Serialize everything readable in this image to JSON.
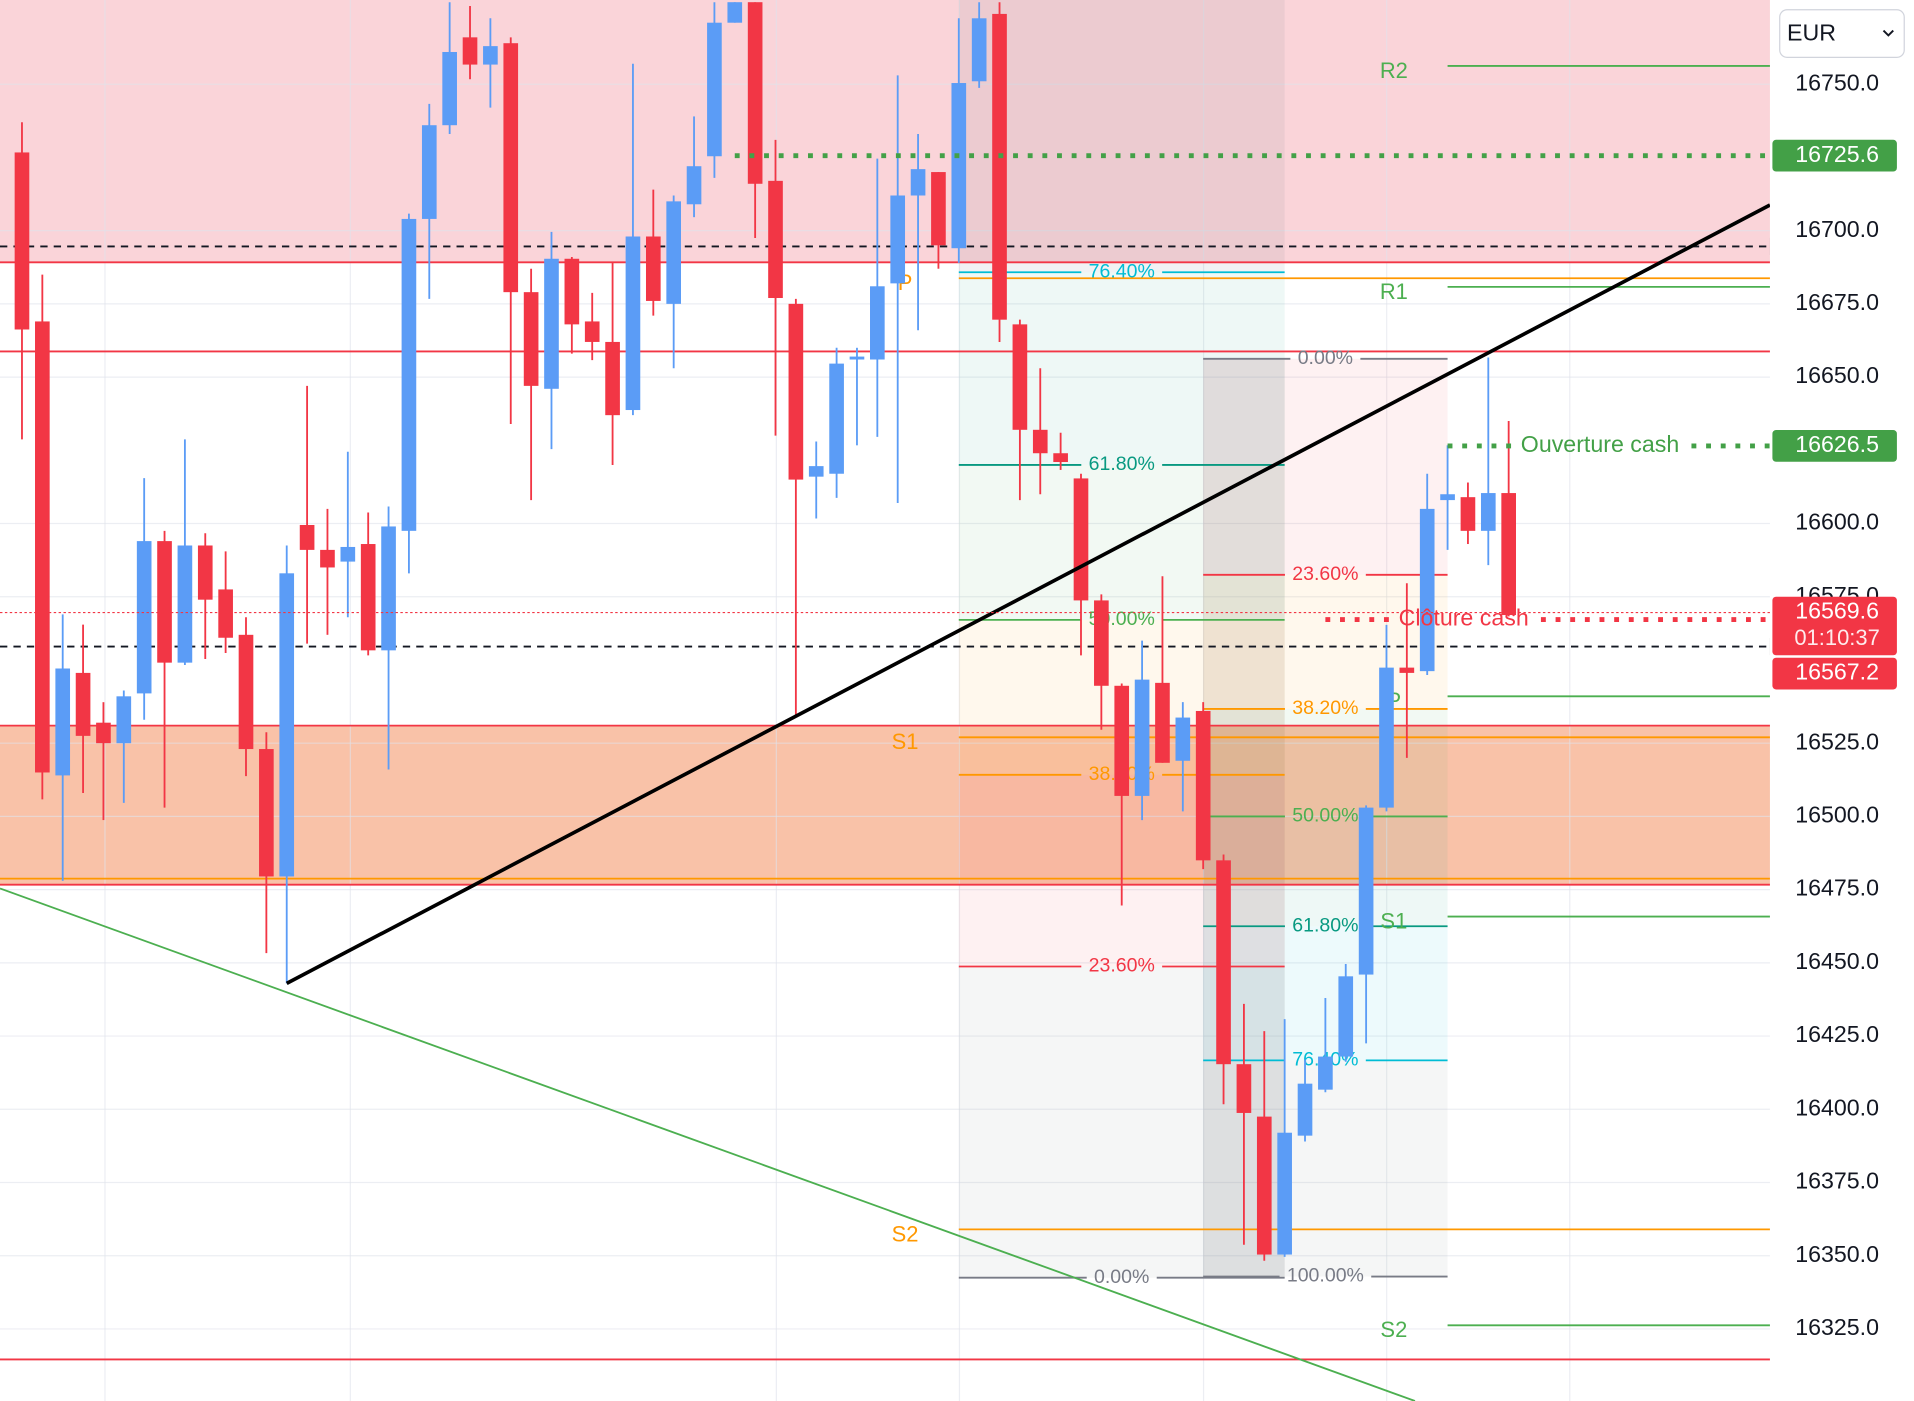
{
  "chart_data": {
    "type": "candlestick",
    "currency": "EUR",
    "up_color": "#5b9cf6",
    "down_color": "#f23645",
    "grid": true,
    "xlim": [
      -1.079,
      85.83
    ],
    "ylim": [
      16300.4,
      16778.75
    ],
    "yticks": [
      {
        "value": 16325,
        "label": "16325.0"
      },
      {
        "value": 16350,
        "label": "16350.0"
      },
      {
        "value": 16375,
        "label": "16375.0"
      },
      {
        "value": 16400,
        "label": "16400.0"
      },
      {
        "value": 16425,
        "label": "16425.0"
      },
      {
        "value": 16450,
        "label": "16450.0"
      },
      {
        "value": 16475,
        "label": "16475.0"
      },
      {
        "value": 16500,
        "label": "16500.0"
      },
      {
        "value": 16525,
        "label": "16525.0"
      },
      {
        "value": 16575,
        "label": "16575.0"
      },
      {
        "value": 16600,
        "label": "16600.0"
      },
      {
        "value": 16650,
        "label": "16650.0"
      },
      {
        "value": 16675,
        "label": "16675.0"
      },
      {
        "value": 16700,
        "label": "16700.0"
      },
      {
        "value": 16750,
        "label": "16750.0"
      }
    ],
    "open": [
      16726.7,
      16669,
      16514,
      16549,
      16532,
      16525,
      16542,
      16594,
      16552.5,
      16592.5,
      16577.5,
      16562,
      16523,
      16479.5,
      16599.5,
      16591,
      16587,
      16593,
      16556.7,
      16597.5,
      16704,
      16736,
      16766,
      16756.7,
      16764,
      16679,
      16646,
      16690.4,
      16669,
      16662,
      16638.75,
      16698,
      16675,
      16709,
      16725.4,
      16771,
      16778,
      16717,
      16675,
      16616,
      16617,
      16656,
      16656,
      16682,
      16712,
      16720,
      16694,
      16751,
      16774,
      16668,
      16632,
      16624,
      16615.4,
      16573.75,
      16544.6,
      16507,
      16545.6,
      16519,
      16536,
      16485,
      16415.4,
      16397.5,
      16350.4,
      16391,
      16406.7,
      16418,
      16446,
      16503,
      16550.8,
      16549.6,
      16608,
      16609,
      16597.5,
      16610.4
    ],
    "high": [
      16737,
      16685,
      16569,
      16565.5,
      16539,
      16543,
      16615.5,
      16597.5,
      16628.75,
      16596.7,
      16590.5,
      16568,
      16528.75,
      16592.5,
      16647,
      16605,
      16624.5,
      16603.75,
      16605.8,
      16705.8,
      16743.3,
      16778,
      16776.7,
      16772.5,
      16766,
      16687,
      16699.6,
      16691,
      16678.75,
      16689,
      16757,
      16714,
      16712,
      16739,
      16778,
      16778,
      16778,
      16731,
      16676.7,
      16628,
      16660,
      16660,
      16724.6,
      16753,
      16733,
      16720,
      16772.5,
      16778,
      16778,
      16669.6,
      16653,
      16631,
      16617,
      16575.8,
      16545.4,
      16560,
      16582,
      16539,
      16539,
      16487,
      16436,
      16426.7,
      16430.8,
      16417,
      16438,
      16449.6,
      16503.75,
      16565.4,
      16579.6,
      16617,
      16626.7,
      16614,
      16656.7,
      16635
    ],
    "low": [
      16628.75,
      16505.8,
      16478,
      16508,
      16498.75,
      16504.6,
      16533,
      16503,
      16551.7,
      16553.75,
      16555.8,
      16513.75,
      16453.3,
      16443,
      16559,
      16562,
      16568,
      16555,
      16516,
      16583,
      16676.7,
      16733,
      16751.7,
      16742,
      16634,
      16608,
      16625.4,
      16658,
      16655.8,
      16620,
      16637,
      16671,
      16653,
      16704.6,
      16718,
      16771,
      16697.5,
      16630,
      16533.75,
      16601.7,
      16608.75,
      16626.7,
      16629.6,
      16607,
      16666,
      16687,
      16689,
      16748.75,
      16662,
      16608,
      16610,
      16618.3,
      16555,
      16529.6,
      16469.6,
      16498.75,
      16518.3,
      16501.7,
      16482,
      16401.7,
      16353.75,
      16348.3,
      16349.6,
      16389,
      16405.8,
      16416.25,
      16422.5,
      16501.7,
      16520,
      16548.3,
      16591,
      16593,
      16585.8,
      16568.3
    ],
    "close": [
      16666.25,
      16515,
      16550.5,
      16527.5,
      16525,
      16541,
      16594,
      16552.5,
      16592.5,
      16574,
      16561,
      16523,
      16479.5,
      16583,
      16591,
      16585,
      16592,
      16556.7,
      16599,
      16704,
      16736,
      16761,
      16756.7,
      16763,
      16679,
      16647,
      16690.4,
      16668,
      16662,
      16637,
      16698,
      16676,
      16710,
      16722,
      16771,
      16778,
      16716,
      16677,
      16615,
      16619.6,
      16654.6,
      16657,
      16681,
      16712,
      16721,
      16695,
      16750.4,
      16772.5,
      16669.6,
      16632,
      16624,
      16621,
      16573.75,
      16544.6,
      16507,
      16546.7,
      16518.3,
      16533.75,
      16485,
      16415.4,
      16398.75,
      16350.4,
      16392,
      16408.75,
      16418,
      16445.4,
      16503,
      16550.8,
      16549,
      16605,
      16610,
      16597.5,
      16610.4,
      16568.75
    ],
    "zones": [
      {
        "from": 16689.2,
        "color": "#fad4d9"
      },
      {
        "from": 16476.7,
        "to": 16531,
        "color": "#f9c2a8"
      }
    ],
    "hlines": [
      {
        "price": 16689.2,
        "color": "#f23645",
        "style": "solid"
      },
      {
        "price": 16658.75,
        "color": "#f23645",
        "style": "solid"
      },
      {
        "price": 16531,
        "color": "#f23645",
        "style": "solid"
      },
      {
        "price": 16478.75,
        "color": "#ff9800",
        "style": "solid"
      },
      {
        "price": 16476.7,
        "color": "#f23645",
        "style": "solid"
      },
      {
        "price": 16314.6,
        "color": "#f23645",
        "style": "solid"
      },
      {
        "price": 16694.6,
        "color": "#131722",
        "style": "dashed"
      },
      {
        "price": 16558,
        "color": "#131722",
        "style": "dashed"
      }
    ],
    "trendlines": [
      {
        "x": [
          13,
          85.83
        ],
        "y": [
          16443,
          16708.75
        ],
        "color": "#000000",
        "width": 3
      },
      {
        "x": [
          -1.079,
          68.4
        ],
        "y": [
          16475.4,
          16300.4
        ],
        "color": "#4caf50",
        "width": 1.5
      }
    ],
    "pivots": [
      {
        "label": "P",
        "price": 16683.75,
        "color": "#ff9800",
        "x_start": 46
      },
      {
        "label": "S1",
        "price": 16527,
        "color": "#ff9800",
        "x_start": 46
      },
      {
        "label": "S2",
        "price": 16359,
        "color": "#ff9800",
        "x_start": 46
      },
      {
        "label": "R2",
        "price": 16756.25,
        "color": "#4caf50",
        "x_start": 70
      },
      {
        "label": "R1",
        "price": 16680.8,
        "color": "#4caf50",
        "x_start": 70
      },
      {
        "label": "P",
        "price": 16541,
        "color": "#4caf50",
        "x_start": 70
      },
      {
        "label": "S1",
        "price": 16465.8,
        "color": "#4caf50",
        "x_start": 70
      },
      {
        "label": "S2",
        "price": 16326.25,
        "color": "#4caf50",
        "x_start": 70
      }
    ],
    "fibs": [
      {
        "x": [
          46,
          62
        ],
        "levels": [
          {
            "label": "76.40%",
            "price": 16685.8,
            "color": "#00bcd4"
          },
          {
            "label": "61.80%",
            "price": 16620,
            "color": "#089981"
          },
          {
            "label": "50.00%",
            "price": 16567.1,
            "color": "#4caf50"
          },
          {
            "label": "38.20%",
            "price": 16514.2,
            "color": "#ff9800"
          },
          {
            "label": "23.60%",
            "price": 16448.75,
            "color": "#f23645"
          },
          {
            "label": "0.00%",
            "price": 16342.5,
            "color": "#787b86"
          }
        ]
      },
      {
        "x": [
          58,
          70
        ],
        "levels": [
          {
            "label": "0.00%",
            "price": 16656.25,
            "color": "#787b86"
          },
          {
            "label": "23.60%",
            "price": 16582.5,
            "color": "#f23645"
          },
          {
            "label": "38.20%",
            "price": 16536.7,
            "color": "#ff9800"
          },
          {
            "label": "50.00%",
            "price": 16500,
            "color": "#4caf50"
          },
          {
            "label": "61.80%",
            "price": 16462.5,
            "color": "#089981"
          },
          {
            "label": "76.40%",
            "price": 16416.7,
            "color": "#00bcd4"
          },
          {
            "label": "100.00%",
            "price": 16342.9,
            "color": "#787b86"
          }
        ]
      }
    ],
    "price_tags": [
      {
        "value": 16725.6,
        "color": "#43a047",
        "line_start": 35
      },
      {
        "value": 16626.5,
        "name": "Ouverture cash",
        "color": "#43a047",
        "line_start": 70
      },
      {
        "value": 16569.6,
        "countdown": "01:10:37",
        "color": "#f23645"
      },
      {
        "value": 16567.2,
        "name": "Clôture cash",
        "color": "#f23645",
        "line_start": 64
      }
    ]
  }
}
